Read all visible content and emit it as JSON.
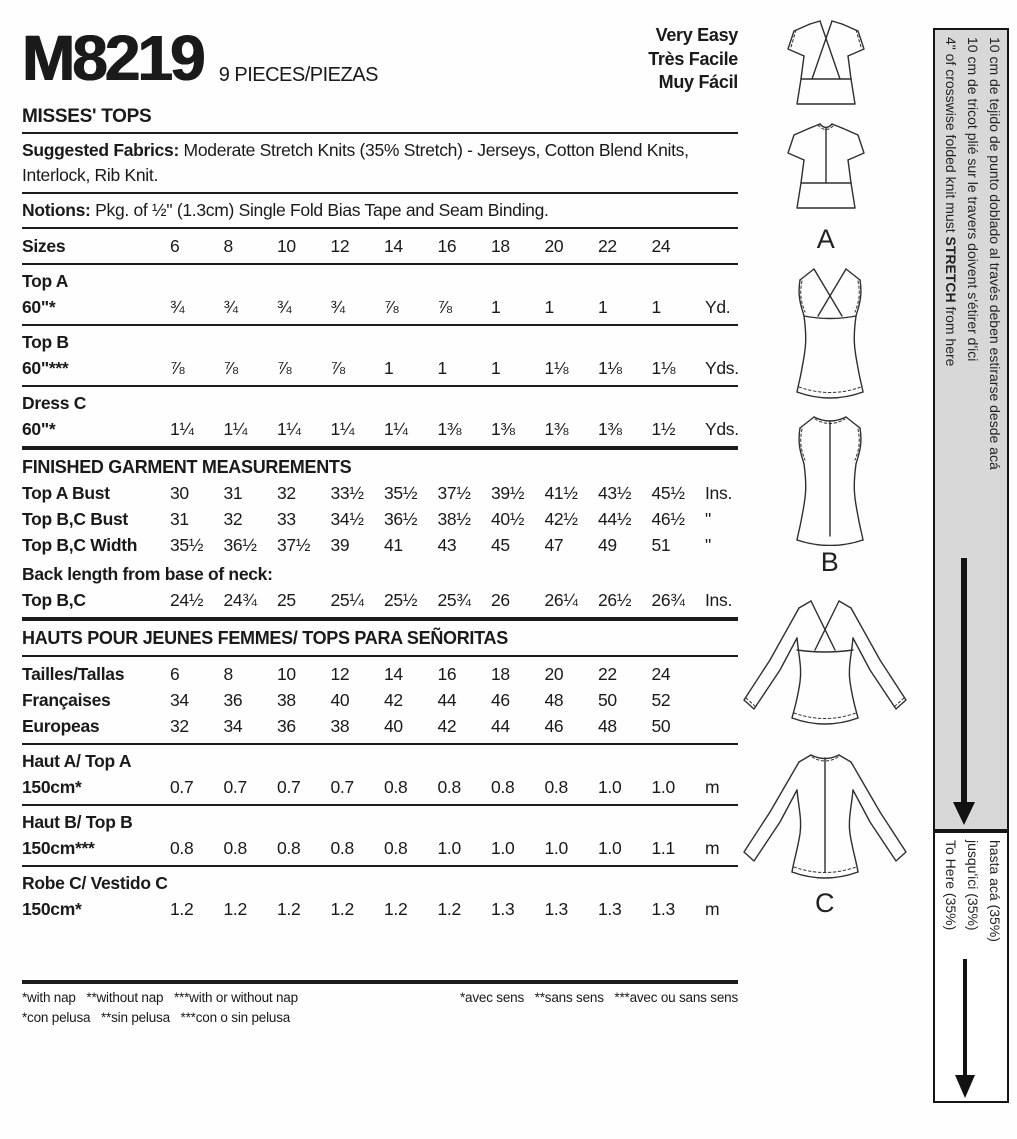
{
  "header": {
    "pattern_number": "M8219",
    "pieces": "9 PIECES/PIEZAS",
    "difficulty_en": "Very Easy",
    "difficulty_fr": "Très Facile",
    "difficulty_es": "Muy Fácil",
    "category": "MISSES' TOPS"
  },
  "fabrics": {
    "label": "Suggested Fabrics:",
    "text": " Moderate Stretch Knits (35% Stretch) - Jerseys, Cotton Blend Knits, Interlock, Rib Knit."
  },
  "notions": {
    "label": "Notions:",
    "text": " Pkg. of ½\" (1.3cm) Single Fold Bias Tape and Seam Binding."
  },
  "tables": {
    "sizes": {
      "label": "Sizes",
      "v": [
        "6",
        "8",
        "10",
        "12",
        "14",
        "16",
        "18",
        "20",
        "22",
        "24"
      ],
      "unit": ""
    },
    "topA": {
      "name": "Top A",
      "label": "60\"*",
      "v": [
        "¾",
        "¾",
        "¾",
        "¾",
        "⅞",
        "⅞",
        "1",
        "1",
        "1",
        "1"
      ],
      "unit": "Yd."
    },
    "topB": {
      "name": "Top B",
      "label": "60\"***",
      "v": [
        "⅞",
        "⅞",
        "⅞",
        "⅞",
        "1",
        "1",
        "1",
        "1⅛",
        "1⅛",
        "1⅛"
      ],
      "unit": "Yds."
    },
    "dressC": {
      "name": "Dress C",
      "label": "60\"*",
      "v": [
        "1¼",
        "1¼",
        "1¼",
        "1¼",
        "1¼",
        "1⅜",
        "1⅜",
        "1⅜",
        "1⅜",
        "1½"
      ],
      "unit": "Yds."
    },
    "fgm_title": "FINISHED GARMENT MEASUREMENTS",
    "bustA": {
      "label": "Top A Bust",
      "v": [
        "30",
        "31",
        "32",
        "33½",
        "35½",
        "37½",
        "39½",
        "41½",
        "43½",
        "45½"
      ],
      "unit": "Ins."
    },
    "bustBC": {
      "label": "Top B,C Bust",
      "v": [
        "31",
        "32",
        "33",
        "34½",
        "36½",
        "38½",
        "40½",
        "42½",
        "44½",
        "46½"
      ],
      "unit": "\""
    },
    "widthBC": {
      "label": "Top B,C Width",
      "v": [
        "35½",
        "36½",
        "37½",
        "39",
        "41",
        "43",
        "45",
        "47",
        "49",
        "51"
      ],
      "unit": "\""
    },
    "back_note": "Back length from base of neck:",
    "backBC": {
      "label": "Top B,C",
      "v": [
        "24½",
        "24¾",
        "25",
        "25¼",
        "25½",
        "25¾",
        "26",
        "26¼",
        "26½",
        "26¾"
      ],
      "unit": "Ins."
    },
    "intl_title": "HAUTS POUR JEUNES FEMMES/ TOPS PARA SEÑORITAS",
    "tailles": {
      "label": "Tailles/Tallas",
      "v": [
        "6",
        "8",
        "10",
        "12",
        "14",
        "16",
        "18",
        "20",
        "22",
        "24"
      ],
      "unit": ""
    },
    "francaises": {
      "label": "Françaises",
      "v": [
        "34",
        "36",
        "38",
        "40",
        "42",
        "44",
        "46",
        "48",
        "50",
        "52"
      ],
      "unit": ""
    },
    "europeas": {
      "label": "Europeas",
      "v": [
        "32",
        "34",
        "36",
        "38",
        "40",
        "42",
        "44",
        "46",
        "48",
        "50"
      ],
      "unit": ""
    },
    "hautA": {
      "name": "Haut A/ Top A",
      "label": "150cm*",
      "v": [
        "0.7",
        "0.7",
        "0.7",
        "0.7",
        "0.8",
        "0.8",
        "0.8",
        "0.8",
        "1.0",
        "1.0"
      ],
      "unit": "m"
    },
    "hautB": {
      "name": "Haut B/ Top B",
      "label": "150cm***",
      "v": [
        "0.8",
        "0.8",
        "0.8",
        "0.8",
        "0.8",
        "1.0",
        "1.0",
        "1.0",
        "1.0",
        "1.1"
      ],
      "unit": "m"
    },
    "robeC": {
      "name": "Robe C/ Vestido C",
      "label": "150cm*",
      "v": [
        "1.2",
        "1.2",
        "1.2",
        "1.2",
        "1.2",
        "1.2",
        "1.3",
        "1.3",
        "1.3",
        "1.3"
      ],
      "unit": "m"
    }
  },
  "footnotes": {
    "en": "*with nap   **without nap   ***with or without nap",
    "fr": "*avec sens   **sans sens   ***avec ou sans sens",
    "es": "*con pelusa   **sin pelusa   ***con o sin pelusa"
  },
  "drawings": {
    "a_label": "A",
    "b_label": "B",
    "c_label": "C"
  },
  "gauge": {
    "bg": "#d8d8d8",
    "line1_pre": "4\" of crosswise folded knit must ",
    "line1_bold": "STRETCH",
    "line1_post": " from here",
    "line2": "10 cm de tricot plié sur le travers doivent s'étirer d'ici",
    "line3": "10 cm de tejido de punto doblado al través deben estirarse desde acá",
    "to_here_en": "To Here (35%)",
    "to_here_fr": "jusqu'ici (35%)",
    "to_here_es": "hasta acá (35%)"
  }
}
